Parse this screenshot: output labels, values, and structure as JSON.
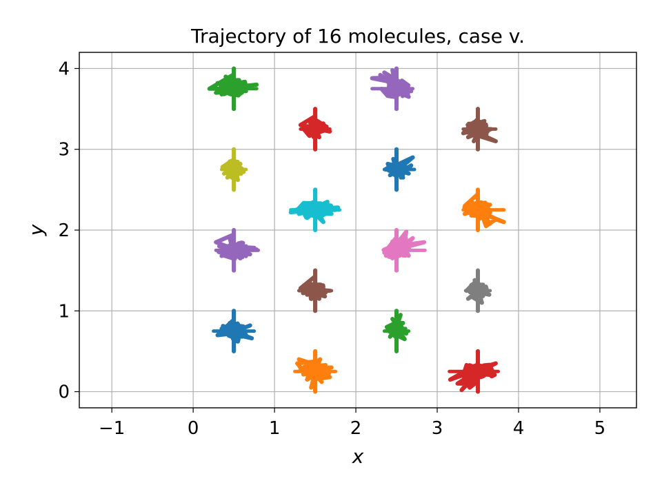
{
  "chart_data": {
    "type": "scatter",
    "title": "Trajectory of 16 molecules, case v.",
    "xlabel": "x",
    "ylabel": "y",
    "xlim": [
      -1.4,
      5.45
    ],
    "ylim": [
      -0.2,
      4.2
    ],
    "xticks": [
      -1,
      0,
      1,
      2,
      3,
      4,
      5
    ],
    "xtick_labels": [
      "−1",
      "0",
      "1",
      "2",
      "3",
      "4",
      "5"
    ],
    "yticks": [
      0,
      1,
      2,
      3,
      4
    ],
    "ytick_labels": [
      "0",
      "1",
      "2",
      "3",
      "4"
    ],
    "grid": true,
    "legend": "none",
    "series": [
      {
        "color": "#1f77b4",
        "center": [
          0.5,
          0.75
        ],
        "y_range": [
          0.5,
          1.0
        ],
        "x_range": [
          0.25,
          0.75
        ],
        "points": [
          [
            0.5,
            0.5
          ],
          [
            0.5,
            1.0
          ],
          [
            0.3,
            0.7
          ],
          [
            0.7,
            0.82
          ],
          [
            0.55,
            0.62
          ],
          [
            0.35,
            0.78
          ],
          [
            0.65,
            0.7
          ],
          [
            0.45,
            0.85
          ],
          [
            0.6,
            0.68
          ],
          [
            0.4,
            0.72
          ],
          [
            0.72,
            0.66
          ],
          [
            0.5,
            0.6
          ]
        ]
      },
      {
        "color": "#ff7f0e",
        "center": [
          1.5,
          0.25
        ],
        "y_range": [
          0.0,
          0.5
        ],
        "x_range": [
          1.25,
          1.75
        ],
        "points": [
          [
            1.5,
            0.0
          ],
          [
            1.5,
            0.5
          ],
          [
            1.28,
            0.35
          ],
          [
            1.7,
            0.3
          ],
          [
            1.4,
            0.15
          ],
          [
            1.62,
            0.22
          ],
          [
            1.32,
            0.28
          ],
          [
            1.56,
            0.4
          ],
          [
            1.45,
            0.05
          ],
          [
            1.68,
            0.18
          ],
          [
            1.3,
            0.4
          ],
          [
            1.58,
            0.12
          ]
        ]
      },
      {
        "color": "#2ca02c",
        "center": [
          2.5,
          0.75
        ],
        "y_range": [
          0.5,
          1.0
        ],
        "x_range": [
          2.35,
          2.65
        ],
        "points": [
          [
            2.5,
            0.5
          ],
          [
            2.5,
            1.0
          ],
          [
            2.38,
            0.8
          ],
          [
            2.62,
            0.72
          ],
          [
            2.45,
            0.9
          ],
          [
            2.58,
            0.85
          ],
          [
            2.42,
            0.68
          ],
          [
            2.6,
            0.65
          ],
          [
            2.48,
            0.78
          ],
          [
            2.55,
            0.95
          ],
          [
            2.4,
            0.75
          ]
        ]
      },
      {
        "color": "#d62728",
        "center": [
          3.5,
          0.25
        ],
        "y_range": [
          0.0,
          0.5
        ],
        "x_range": [
          3.15,
          3.75
        ],
        "points": [
          [
            3.5,
            0.0
          ],
          [
            3.5,
            0.5
          ],
          [
            3.16,
            0.15
          ],
          [
            3.4,
            0.05
          ],
          [
            3.25,
            0.1
          ],
          [
            3.6,
            0.3
          ],
          [
            3.35,
            0.2
          ],
          [
            3.72,
            0.35
          ],
          [
            3.45,
            0.12
          ],
          [
            3.55,
            0.25
          ],
          [
            3.3,
            0.02
          ],
          [
            3.65,
            0.28
          ]
        ]
      },
      {
        "color": "#9467bd",
        "center": [
          0.5,
          1.75
        ],
        "y_range": [
          1.5,
          2.0
        ],
        "x_range": [
          0.28,
          0.8
        ],
        "points": [
          [
            0.5,
            1.5
          ],
          [
            0.5,
            2.0
          ],
          [
            0.28,
            1.85
          ],
          [
            0.78,
            1.76
          ],
          [
            0.35,
            1.68
          ],
          [
            0.65,
            1.8
          ],
          [
            0.4,
            1.72
          ],
          [
            0.7,
            1.7
          ],
          [
            0.32,
            1.8
          ],
          [
            0.58,
            1.65
          ],
          [
            0.45,
            1.9
          ],
          [
            0.75,
            1.78
          ]
        ]
      },
      {
        "color": "#8c564b",
        "center": [
          1.5,
          1.25
        ],
        "y_range": [
          1.0,
          1.5
        ],
        "x_range": [
          1.3,
          1.7
        ],
        "points": [
          [
            1.5,
            1.0
          ],
          [
            1.5,
            1.5
          ],
          [
            1.32,
            1.28
          ],
          [
            1.68,
            1.25
          ],
          [
            1.4,
            1.2
          ],
          [
            1.6,
            1.3
          ],
          [
            1.35,
            1.22
          ],
          [
            1.62,
            1.18
          ],
          [
            1.45,
            1.32
          ],
          [
            1.55,
            1.15
          ],
          [
            1.38,
            1.3
          ]
        ]
      },
      {
        "color": "#e377c2",
        "center": [
          2.5,
          1.75
        ],
        "y_range": [
          1.5,
          2.0
        ],
        "x_range": [
          2.35,
          2.85
        ],
        "points": [
          [
            2.5,
            1.5
          ],
          [
            2.5,
            2.0
          ],
          [
            2.35,
            1.72
          ],
          [
            2.84,
            1.85
          ],
          [
            2.6,
            1.95
          ],
          [
            2.45,
            1.65
          ],
          [
            2.7,
            1.9
          ],
          [
            2.55,
            1.8
          ],
          [
            2.4,
            1.78
          ],
          [
            2.62,
            1.98
          ],
          [
            2.52,
            1.7
          ]
        ]
      },
      {
        "color": "#7f7f7f",
        "center": [
          3.5,
          1.25
        ],
        "y_range": [
          1.0,
          1.5
        ],
        "x_range": [
          3.35,
          3.65
        ],
        "points": [
          [
            3.5,
            1.0
          ],
          [
            3.5,
            1.5
          ],
          [
            3.36,
            1.25
          ],
          [
            3.64,
            1.2
          ],
          [
            3.42,
            1.32
          ],
          [
            3.6,
            1.3
          ],
          [
            3.38,
            1.15
          ],
          [
            3.55,
            1.1
          ],
          [
            3.46,
            1.38
          ],
          [
            3.62,
            1.22
          ],
          [
            3.4,
            1.28
          ]
        ]
      },
      {
        "color": "#bcbd22",
        "center": [
          0.5,
          2.75
        ],
        "y_range": [
          2.5,
          3.0
        ],
        "x_range": [
          0.35,
          0.65
        ],
        "points": [
          [
            0.5,
            2.5
          ],
          [
            0.5,
            3.0
          ],
          [
            0.36,
            2.78
          ],
          [
            0.62,
            2.72
          ],
          [
            0.42,
            2.65
          ],
          [
            0.58,
            2.82
          ],
          [
            0.38,
            2.7
          ],
          [
            0.55,
            2.62
          ],
          [
            0.45,
            2.85
          ],
          [
            0.6,
            2.76
          ],
          [
            0.4,
            2.8
          ]
        ]
      },
      {
        "color": "#17becf",
        "center": [
          1.5,
          2.25
        ],
        "y_range": [
          2.0,
          2.5
        ],
        "x_range": [
          1.2,
          1.8
        ],
        "points": [
          [
            1.5,
            2.0
          ],
          [
            1.5,
            2.5
          ],
          [
            1.2,
            2.22
          ],
          [
            1.78,
            2.28
          ],
          [
            1.3,
            2.2
          ],
          [
            1.65,
            2.35
          ],
          [
            1.4,
            2.15
          ],
          [
            1.7,
            2.2
          ],
          [
            1.35,
            2.28
          ],
          [
            1.6,
            2.1
          ],
          [
            1.25,
            2.25
          ],
          [
            1.75,
            2.25
          ]
        ]
      },
      {
        "color": "#1f77b4",
        "center": [
          2.5,
          2.75
        ],
        "y_range": [
          2.5,
          3.0
        ],
        "x_range": [
          2.35,
          2.72
        ],
        "points": [
          [
            2.5,
            2.5
          ],
          [
            2.5,
            3.0
          ],
          [
            2.36,
            2.75
          ],
          [
            2.7,
            2.9
          ],
          [
            2.42,
            2.68
          ],
          [
            2.6,
            2.82
          ],
          [
            2.4,
            2.8
          ],
          [
            2.65,
            2.7
          ],
          [
            2.46,
            2.88
          ],
          [
            2.58,
            2.65
          ],
          [
            2.68,
            2.8
          ]
        ]
      },
      {
        "color": "#ff7f0e",
        "center": [
          3.5,
          2.25
        ],
        "y_range": [
          2.0,
          2.5
        ],
        "x_range": [
          3.32,
          3.82
        ],
        "points": [
          [
            3.5,
            2.0
          ],
          [
            3.5,
            2.5
          ],
          [
            3.34,
            2.3
          ],
          [
            3.82,
            2.1
          ],
          [
            3.6,
            2.05
          ],
          [
            3.45,
            2.25
          ],
          [
            3.7,
            2.15
          ],
          [
            3.4,
            2.35
          ],
          [
            3.55,
            2.2
          ],
          [
            3.65,
            2.08
          ],
          [
            3.42,
            2.18
          ],
          [
            3.58,
            2.32
          ]
        ]
      },
      {
        "color": "#2ca02c",
        "center": [
          0.5,
          3.75
        ],
        "y_range": [
          3.5,
          4.0
        ],
        "x_range": [
          0.2,
          0.78
        ],
        "points": [
          [
            0.5,
            3.5
          ],
          [
            0.5,
            4.0
          ],
          [
            0.2,
            3.75
          ],
          [
            0.78,
            3.8
          ],
          [
            0.35,
            3.68
          ],
          [
            0.65,
            3.72
          ],
          [
            0.3,
            3.82
          ],
          [
            0.7,
            3.78
          ],
          [
            0.4,
            3.9
          ],
          [
            0.6,
            3.7
          ],
          [
            0.28,
            3.7
          ],
          [
            0.55,
            3.85
          ]
        ]
      },
      {
        "color": "#d62728",
        "center": [
          1.5,
          3.25
        ],
        "y_range": [
          3.0,
          3.5
        ],
        "x_range": [
          1.32,
          1.68
        ],
        "points": [
          [
            1.5,
            3.0
          ],
          [
            1.5,
            3.5
          ],
          [
            1.32,
            3.3
          ],
          [
            1.68,
            3.22
          ],
          [
            1.42,
            3.18
          ],
          [
            1.6,
            3.32
          ],
          [
            1.38,
            3.25
          ],
          [
            1.55,
            3.15
          ],
          [
            1.45,
            3.35
          ],
          [
            1.64,
            3.28
          ],
          [
            1.4,
            3.22
          ]
        ]
      },
      {
        "color": "#9467bd",
        "center": [
          2.5,
          3.75
        ],
        "y_range": [
          3.5,
          4.0
        ],
        "x_range": [
          2.2,
          2.7
        ],
        "points": [
          [
            2.5,
            3.5
          ],
          [
            2.5,
            4.0
          ],
          [
            2.2,
            3.88
          ],
          [
            2.68,
            3.72
          ],
          [
            2.35,
            3.95
          ],
          [
            2.6,
            3.8
          ],
          [
            2.4,
            3.9
          ],
          [
            2.65,
            3.65
          ],
          [
            2.3,
            3.92
          ],
          [
            2.55,
            3.7
          ],
          [
            2.45,
            3.98
          ]
        ]
      },
      {
        "color": "#8c564b",
        "center": [
          3.5,
          3.25
        ],
        "y_range": [
          3.0,
          3.5
        ],
        "x_range": [
          3.32,
          3.72
        ],
        "points": [
          [
            3.5,
            3.0
          ],
          [
            3.5,
            3.5
          ],
          [
            3.32,
            3.2
          ],
          [
            3.72,
            3.1
          ],
          [
            3.4,
            3.3
          ],
          [
            3.62,
            3.22
          ],
          [
            3.38,
            3.15
          ],
          [
            3.58,
            3.35
          ],
          [
            3.45,
            3.1
          ],
          [
            3.66,
            3.25
          ],
          [
            3.42,
            3.28
          ]
        ]
      }
    ]
  }
}
